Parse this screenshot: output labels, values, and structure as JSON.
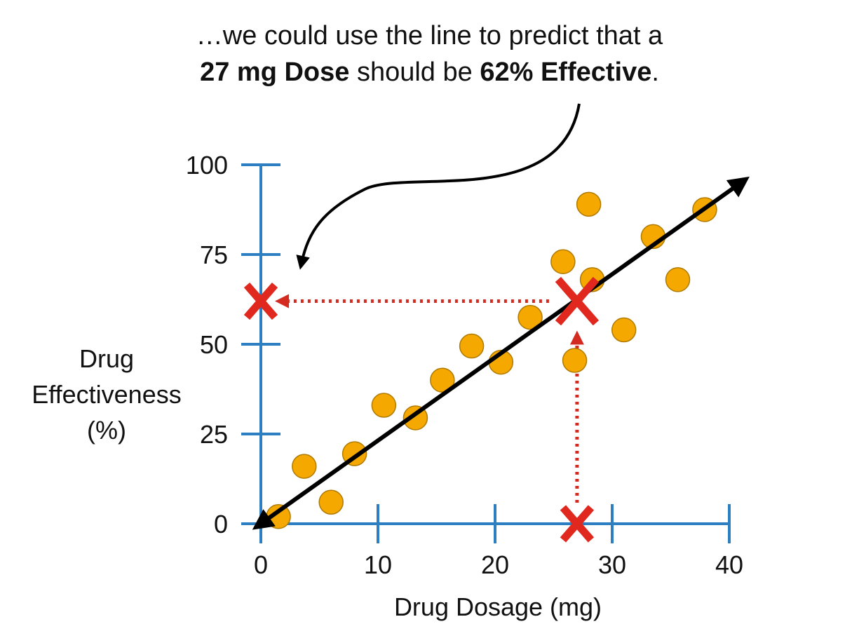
{
  "annotation": {
    "line1": "…we could use the line to predict that a",
    "bold1": "27 mg Dose",
    "mid": " should be ",
    "bold2": "62% Effective",
    "end": "."
  },
  "chart_data": {
    "type": "scatter",
    "title": "",
    "xlabel": "Drug Dosage (mg)",
    "ylabel_lines": [
      "Drug",
      "Effectiveness",
      "(%)"
    ],
    "xlim": [
      0,
      40
    ],
    "ylim": [
      0,
      100
    ],
    "x_ticks": [
      0,
      10,
      20,
      30,
      40
    ],
    "y_ticks": [
      0,
      25,
      50,
      75,
      100
    ],
    "points": [
      {
        "x": 1.5,
        "y": 2
      },
      {
        "x": 3.7,
        "y": 16
      },
      {
        "x": 6,
        "y": 6
      },
      {
        "x": 8,
        "y": 19.5
      },
      {
        "x": 10.5,
        "y": 33
      },
      {
        "x": 13.2,
        "y": 29.5
      },
      {
        "x": 15.5,
        "y": 40
      },
      {
        "x": 18,
        "y": 49.5
      },
      {
        "x": 20.5,
        "y": 45
      },
      {
        "x": 23,
        "y": 57.5
      },
      {
        "x": 25.8,
        "y": 73
      },
      {
        "x": 26.8,
        "y": 45.5
      },
      {
        "x": 28,
        "y": 89
      },
      {
        "x": 28.3,
        "y": 68
      },
      {
        "x": 31,
        "y": 54
      },
      {
        "x": 33.5,
        "y": 80
      },
      {
        "x": 35.6,
        "y": 68
      },
      {
        "x": 37.9,
        "y": 87.5
      }
    ],
    "fit_line": {
      "x_start": 0,
      "y_start": 0,
      "x_end": 41,
      "y_end": 95
    },
    "prediction": {
      "x": 27,
      "y": 62,
      "marker": "X"
    },
    "colors": {
      "points": "#f5a800",
      "point_stroke": "#b07a00",
      "axis": "#2d7fc1",
      "line": "#000000",
      "marker": "#e0281e",
      "dotted": "#d42b20"
    }
  }
}
